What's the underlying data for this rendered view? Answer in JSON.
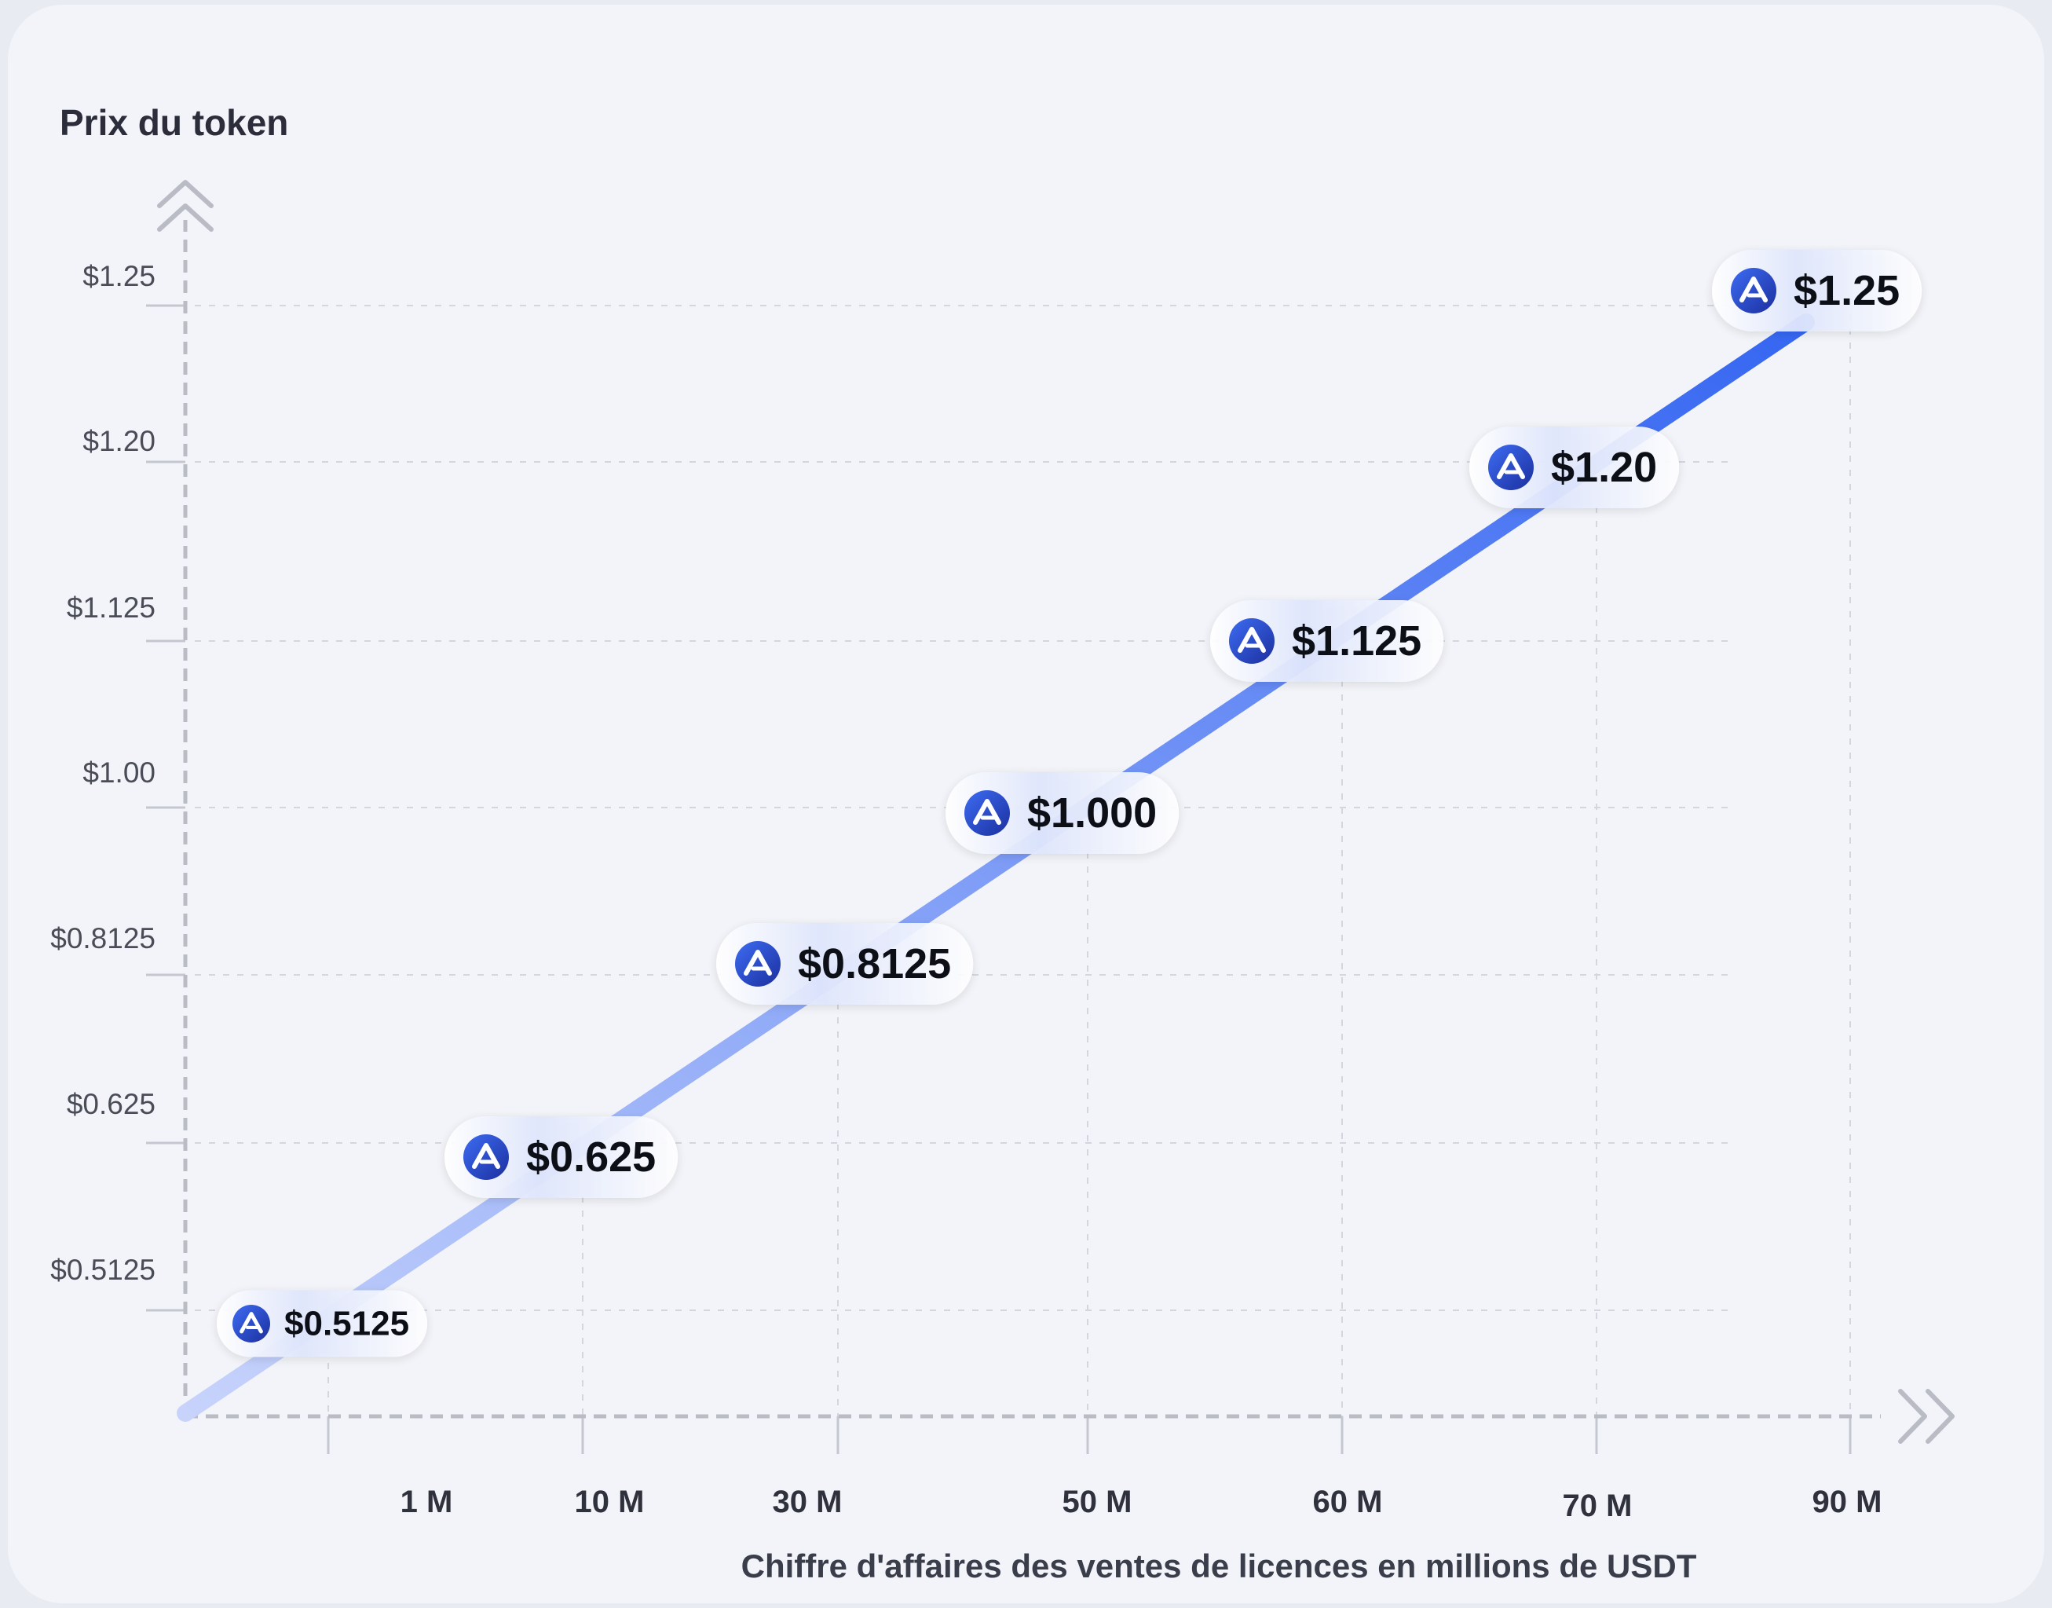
{
  "chart_data": {
    "type": "line",
    "ylabel": "Prix du token",
    "xlabel": "Chiffre d'affaires des ventes de licences en millions de USDT",
    "y_ticks": [
      "$0.5125",
      "$0.625",
      "$0.8125",
      "$1.00",
      "$1.125",
      "$1.20",
      "$1.25"
    ],
    "x_ticks": [
      "1 M",
      "10 M",
      "30 M",
      "50 M",
      "60 M",
      "70 M",
      "90 M"
    ],
    "points": [
      {
        "x": "1 M",
        "y": 0.5125,
        "label": "$0.5125"
      },
      {
        "x": "10 M",
        "y": 0.625,
        "label": "$0.625"
      },
      {
        "x": "30 M",
        "y": 0.8125,
        "label": "$0.8125"
      },
      {
        "x": "50 M",
        "y": 1.0,
        "label": "$1.000"
      },
      {
        "x": "60 M",
        "y": 1.125,
        "label": "$1.125"
      },
      {
        "x": "70 M",
        "y": 1.2,
        "label": "$1.20"
      },
      {
        "x": "90 M",
        "y": 1.25,
        "label": "$1.25"
      }
    ],
    "grid": true,
    "colors": {
      "line_start": "#b7c6fb",
      "line_end": "#3d6cf3",
      "token_icon": "#2a4fd6",
      "axis": "#b9bcc4",
      "background": "#f2f4f9"
    },
    "icon": "token-logo-icon"
  }
}
